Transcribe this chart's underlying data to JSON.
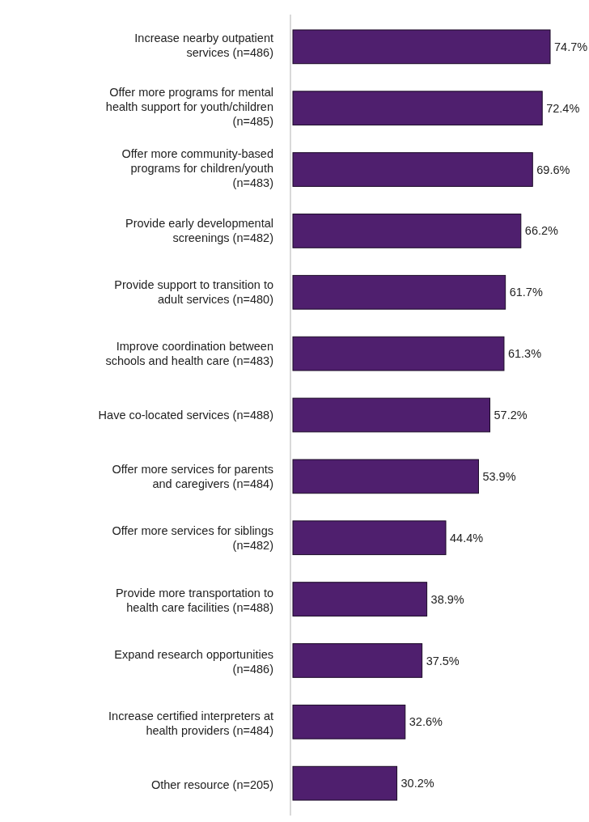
{
  "chart_data": {
    "type": "bar",
    "orientation": "horizontal",
    "categories": [
      "Increase nearby outpatient services (n=486)",
      "Offer more programs for mental health support for youth/children (n=485)",
      "Offer more community-based programs for children/youth (n=483)",
      "Provide early developmental screenings (n=482)",
      "Provide support to transition to adult services (n=480)",
      "Improve coordination between schools and health care (n=483)",
      "Have co-located services (n=488)",
      "Offer more services for parents and caregivers (n=484)",
      "Offer more services for siblings (n=482)",
      "Provide more transportation to health care facilities (n=488)",
      "Expand research opportunities (n=486)",
      "Increase certified interpreters at health providers (n=484)",
      "Other resource (n=205)"
    ],
    "values": [
      74.7,
      72.4,
      69.6,
      66.2,
      61.7,
      61.3,
      57.2,
      53.9,
      44.4,
      38.9,
      37.5,
      32.6,
      30.2
    ],
    "value_labels": [
      "74.7%",
      "72.4%",
      "69.6%",
      "66.2%",
      "61.7%",
      "61.3%",
      "57.2%",
      "53.9%",
      "44.4%",
      "38.9%",
      "37.5%",
      "32.6%",
      "30.2%"
    ],
    "color": "#4f1f6e"
  }
}
